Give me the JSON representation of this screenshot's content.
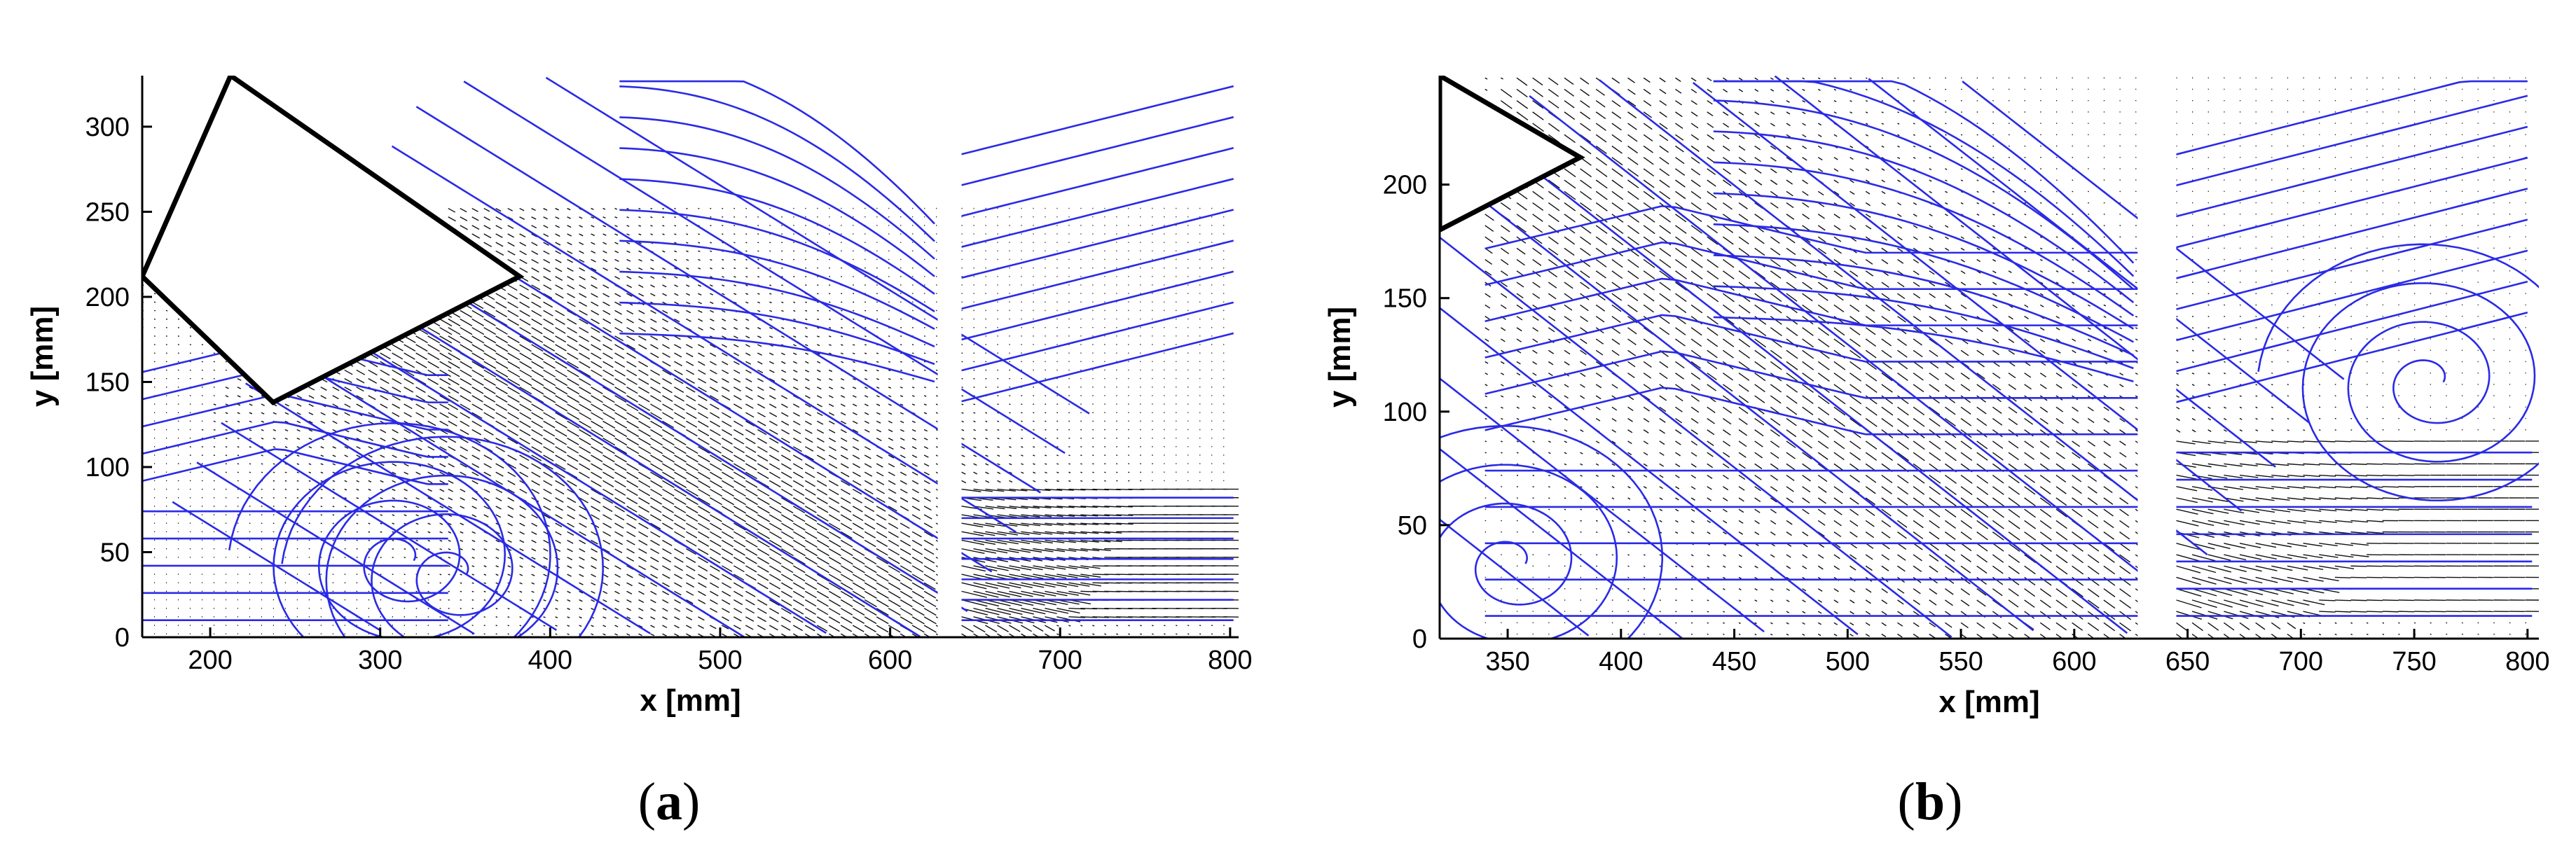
{
  "colors": {
    "streamline": "#2a2ae6",
    "vector": "#111111",
    "axis": "#000000",
    "wing": "#000000"
  },
  "chart_data": [
    {
      "type": "streamline-vector-field",
      "panel_label": "a",
      "xlabel": "x [mm]",
      "ylabel": "y [mm]",
      "xlim": [
        160,
        805
      ],
      "ylim": [
        0,
        330
      ],
      "xticks": [
        200,
        300,
        400,
        500,
        600,
        700,
        800
      ],
      "yticks": [
        0,
        50,
        100,
        150,
        200,
        250,
        300
      ],
      "wing_outline": [
        [
          160,
          212
        ],
        [
          237,
          138
        ],
        [
          382,
          212
        ],
        [
          212,
          330
        ]
      ],
      "measurement_windows": [
        {
          "x": [
            160,
            340
          ],
          "y": [
            0,
            215
          ]
        },
        {
          "x": [
            340,
            628
          ],
          "y": [
            0,
            252
          ]
        },
        {
          "x": [
            642,
            802
          ],
          "y": [
            0,
            256
          ]
        }
      ],
      "vortex_centers": [
        {
          "x": 343,
          "y": 37
        },
        {
          "x": 312,
          "y": 45
        }
      ],
      "jet": {
        "from": [
          285,
          215
        ],
        "to": [
          625,
          5
        ],
        "spread": 78
      },
      "tail": {
        "x": [
          642,
          802
        ],
        "y": [
          10,
          90
        ]
      }
    },
    {
      "type": "streamline-vector-field",
      "panel_label": "b",
      "xlabel": "x [mm]",
      "ylabel": "y [mm]",
      "xlim": [
        320,
        805
      ],
      "ylim": [
        0,
        248
      ],
      "xticks": [
        350,
        400,
        450,
        500,
        550,
        600,
        650,
        700,
        750,
        800
      ],
      "yticks": [
        0,
        50,
        100,
        150,
        200
      ],
      "wing_outline": [
        [
          320,
          180
        ],
        [
          382,
          212
        ],
        [
          320,
          248
        ]
      ],
      "measurement_windows": [
        {
          "x": [
            340,
            628
          ],
          "y": [
            0,
            248
          ]
        },
        {
          "x": [
            645,
            802
          ],
          "y": [
            0,
            248
          ]
        }
      ],
      "vortex_centers": [
        {
          "x": 352,
          "y": 33
        },
        {
          "x": 757,
          "y": 113
        }
      ],
      "jet": {
        "from": [
          362,
          215
        ],
        "to": [
          625,
          10
        ],
        "spread": 70
      },
      "tail": {
        "x": [
          645,
          802
        ],
        "y": [
          10,
          90
        ]
      }
    }
  ]
}
